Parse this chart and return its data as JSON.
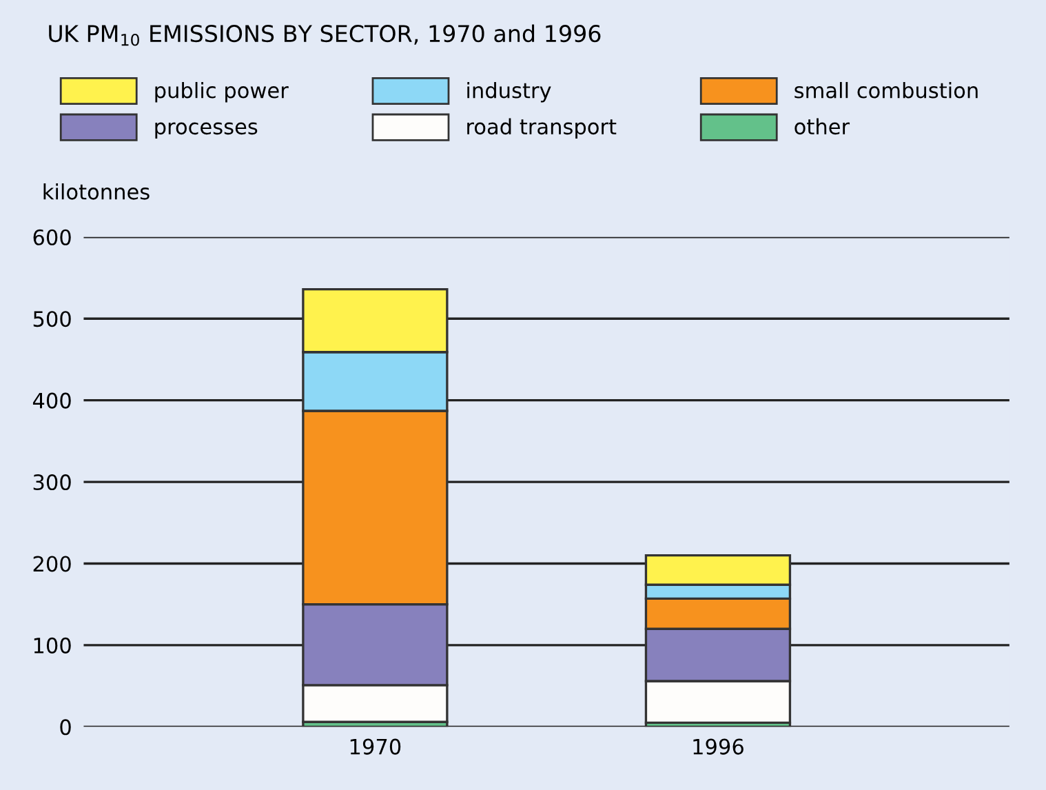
{
  "chart_data": {
    "type": "bar",
    "title": "UK PM$_{10}$ EMISSIONS BY SECTOR, 1970 and 1996",
    "ylabel": "kilotonnes",
    "categories": [
      "1970",
      "1996"
    ],
    "stacked": true,
    "series": [
      {
        "name": "other",
        "color": "#63c18a",
        "values": [
          6,
          5
        ]
      },
      {
        "name": "road transport",
        "color": "#fefdfb",
        "values": [
          45,
          51
        ]
      },
      {
        "name": "processes",
        "color": "#8781bd",
        "values": [
          99,
          64
        ]
      },
      {
        "name": "small combustion",
        "color": "#f7921e",
        "values": [
          237,
          37
        ]
      },
      {
        "name": "industry",
        "color": "#8dd8f6",
        "values": [
          72,
          17
        ]
      },
      {
        "name": "public power",
        "color": "#fff24d",
        "values": [
          77,
          36
        ]
      }
    ],
    "ylim": [
      0,
      600
    ],
    "yticks": [
      0,
      100,
      200,
      300,
      400,
      500,
      600
    ],
    "grid": "y",
    "legend": "top left"
  }
}
